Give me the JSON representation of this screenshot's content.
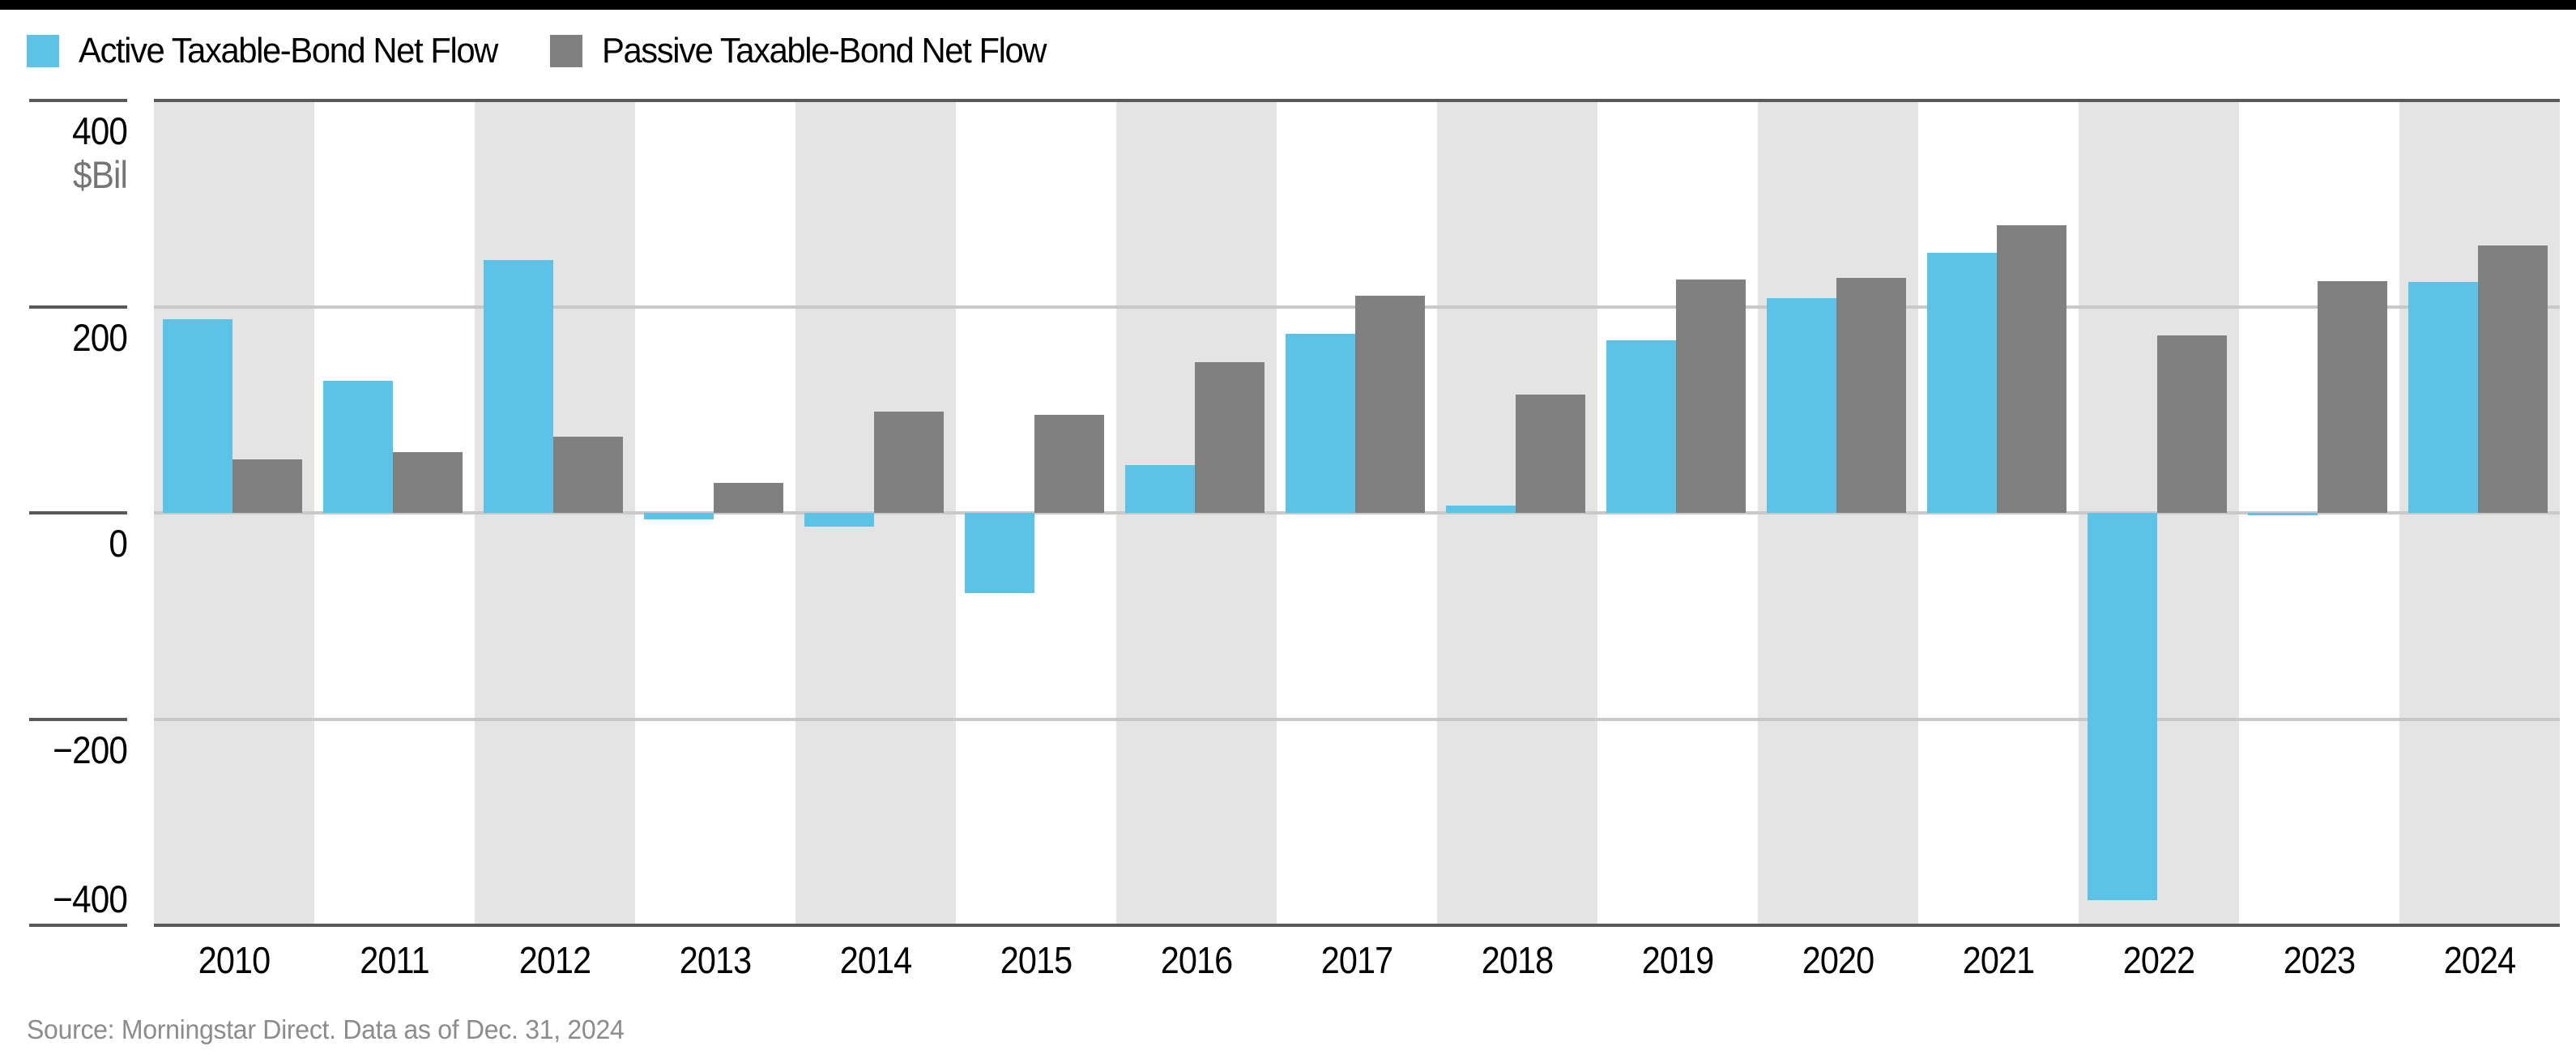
{
  "page": {
    "top_bar_color": "#000000",
    "background_color": "#ffffff"
  },
  "legend": [
    {
      "label": "Active Taxable-Bond Net Flow",
      "color": "#5cc3e7"
    },
    {
      "label": "Passive Taxable-Bond Net Flow",
      "color": "#808080"
    }
  ],
  "source_note": "Source: Morningstar Direct. Data as of Dec. 31, 2024",
  "chart_data": {
    "type": "bar",
    "title": "",
    "unit_label": "$Bil",
    "xlabel": "",
    "ylabel": "$Bil",
    "categories": [
      "2010",
      "2011",
      "2012",
      "2013",
      "2014",
      "2015",
      "2016",
      "2017",
      "2018",
      "2019",
      "2020",
      "2021",
      "2022",
      "2023",
      "2024"
    ],
    "series": [
      {
        "name": "Active Taxable-Bond Net Flow",
        "color": "#5cc3e7",
        "values": [
          188,
          128,
          245,
          -6,
          -13,
          -78,
          46,
          174,
          7,
          167,
          208,
          252,
          -376,
          -2,
          224
        ]
      },
      {
        "name": "Passive Taxable-Bond Net Flow",
        "color": "#808080",
        "values": [
          52,
          59,
          74,
          29,
          98,
          95,
          146,
          211,
          115,
          226,
          228,
          279,
          172,
          225,
          259
        ]
      }
    ],
    "ylim": [
      -400,
      400
    ],
    "yticks": [
      400,
      200,
      0,
      -200,
      -400
    ],
    "grid": "horizontal",
    "legend_position": "top-left",
    "plot_band_shading": "alternate year bands shaded gray starting with 2010",
    "band_color": "#e4e4e4",
    "gridline_color": "#c9c9c9",
    "axis_line_color": "#58595b"
  }
}
